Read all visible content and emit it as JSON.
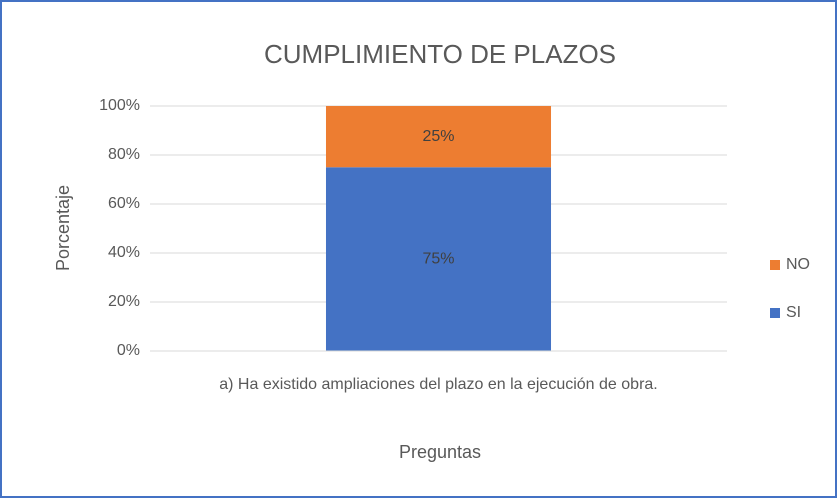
{
  "chart_data": {
    "type": "stacked_bar",
    "title": "CUMPLIMIENTO DE PLAZOS",
    "y_label": "Porcentaje",
    "x_label": "Preguntas",
    "categories": [
      "a)  Ha existido ampliaciones del plazo en la ejecución de obra."
    ],
    "series": [
      {
        "name": "SI",
        "color": "#4472c4",
        "values": [
          75
        ],
        "value_labels": [
          "75%"
        ]
      },
      {
        "name": "NO",
        "color": "#ed7d31",
        "values": [
          25
        ],
        "value_labels": [
          "25%"
        ]
      }
    ],
    "ylim": [
      0,
      100
    ],
    "yticks": [
      {
        "value": 0,
        "label": "0%"
      },
      {
        "value": 20,
        "label": "20%"
      },
      {
        "value": 40,
        "label": "40%"
      },
      {
        "value": 60,
        "label": "60%"
      },
      {
        "value": 80,
        "label": "80%"
      },
      {
        "value": 100,
        "label": "100%"
      }
    ],
    "grid": true,
    "legend": "right"
  }
}
